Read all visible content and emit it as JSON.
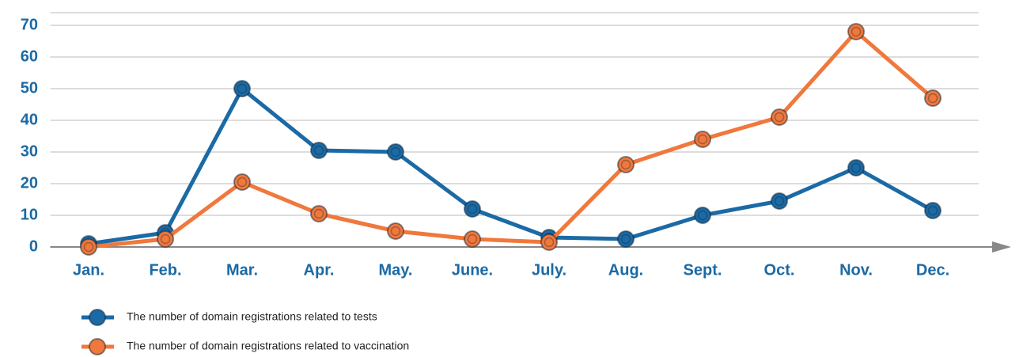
{
  "chart_data": {
    "type": "line",
    "categories": [
      "Jan.",
      "Feb.",
      "Mar.",
      "Apr.",
      "May.",
      "June.",
      "July.",
      "Aug.",
      "Sept.",
      "Oct.",
      "Nov.",
      "Dec."
    ],
    "series": [
      {
        "name": "The number of domain registrations related to tests",
        "color": "#1b6aa5",
        "values": [
          1,
          4.5,
          50,
          30.5,
          30,
          12,
          3,
          2.5,
          10,
          14.5,
          25,
          11.5
        ]
      },
      {
        "name": "The number of domain registrations related to vaccination",
        "color": "#f0783c",
        "values": [
          0,
          2.5,
          20.5,
          10.5,
          5,
          2.5,
          1.5,
          26,
          34,
          41,
          68,
          47
        ]
      }
    ],
    "ylim": [
      0,
      74
    ],
    "yticks": [
      0,
      10,
      20,
      30,
      40,
      50,
      60,
      70
    ],
    "grid": true,
    "legend": "bottom-left"
  }
}
